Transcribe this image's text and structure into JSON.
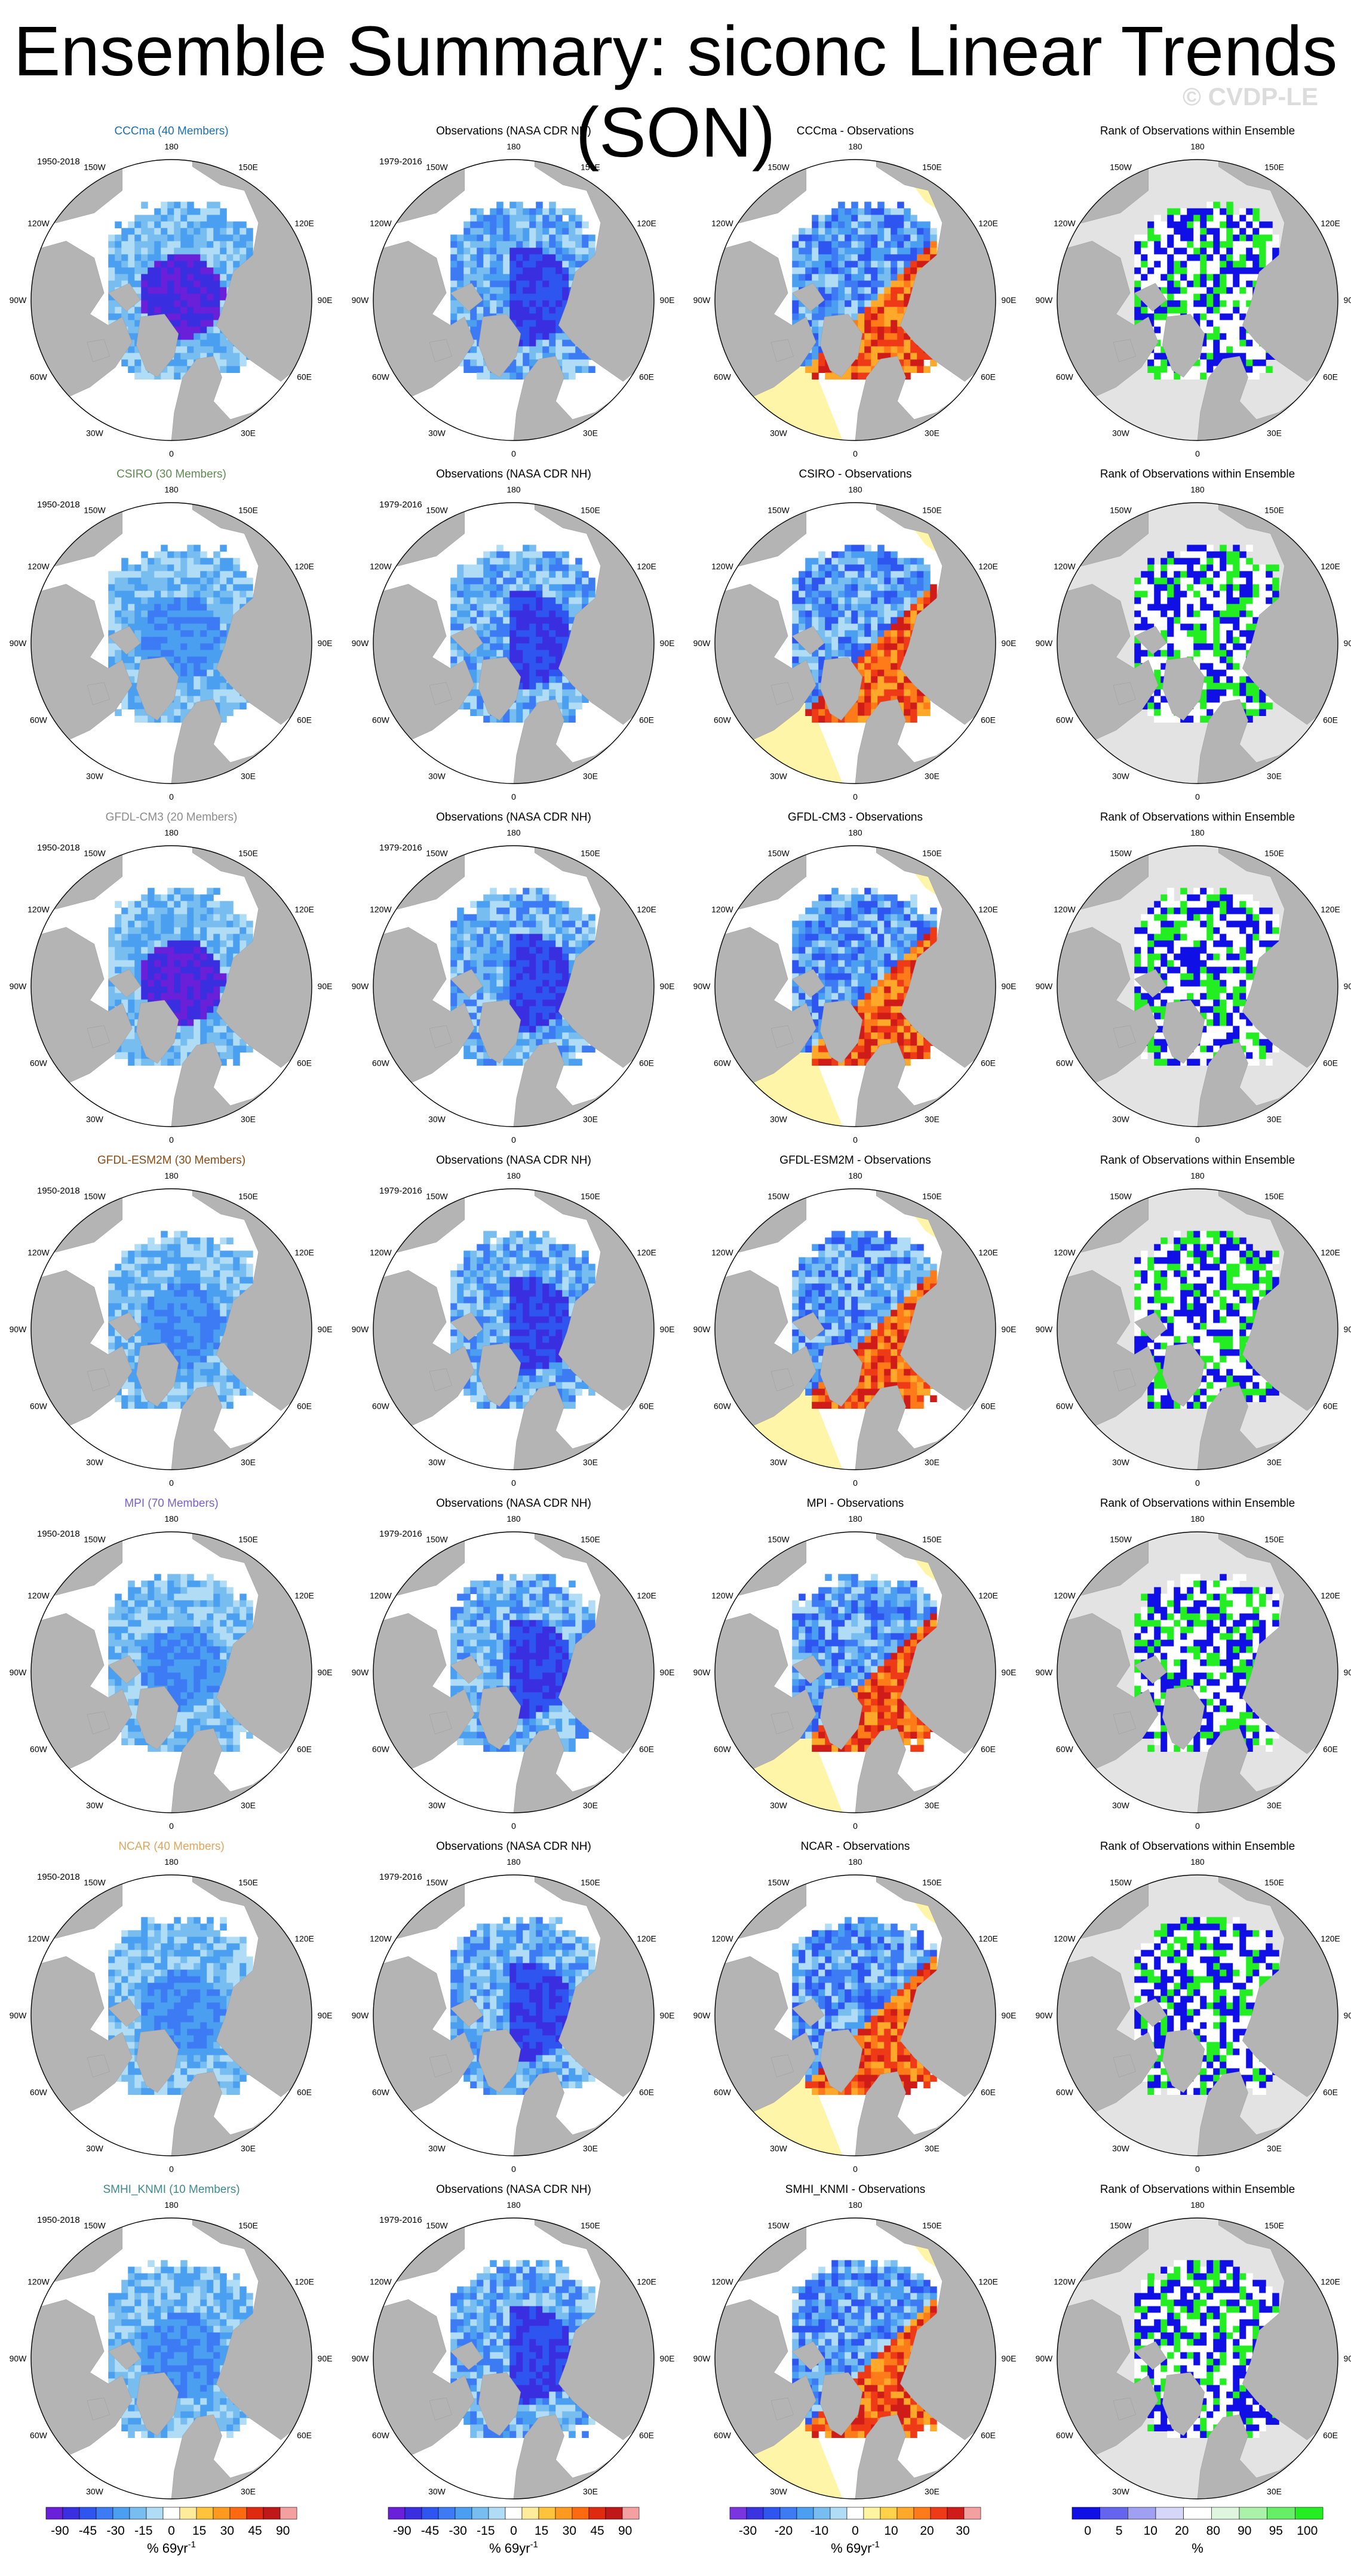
{
  "title": "Ensemble Summary: siconc Linear Trends (SON)",
  "watermark": "© CVDP-LE",
  "lon_labels": [
    "180",
    "150E",
    "120E",
    "90E",
    "60E",
    "30E",
    "0",
    "30W",
    "60W",
    "90W",
    "120W",
    "150W"
  ],
  "rows": [
    {
      "model": "CCCma",
      "title": "CCCma (40 Members)",
      "color": "#1c70ad",
      "period": "1950-2018",
      "diff_title": "CCCma - Observations"
    },
    {
      "model": "CSIRO",
      "title": "CSIRO (30 Members)",
      "color": "#5e8a50",
      "period": "1950-2018",
      "diff_title": "CSIRO - Observations"
    },
    {
      "model": "GFDL-CM3",
      "title": "GFDL-CM3 (20 Members)",
      "color": "#8c8c8c",
      "period": "1950-2018",
      "diff_title": "GFDL-CM3 - Observations"
    },
    {
      "model": "GFDL-ESM2M",
      "title": "GFDL-ESM2M (30 Members)",
      "color": "#8b4a14",
      "period": "1950-2018",
      "diff_title": "GFDL-ESM2M - Observations"
    },
    {
      "model": "MPI",
      "title": "MPI (70 Members)",
      "color": "#7a5fc6",
      "period": "1950-2018",
      "diff_title": "MPI - Observations"
    },
    {
      "model": "NCAR",
      "title": "NCAR (40 Members)",
      "color": "#e0a55c",
      "period": "1950-2018",
      "diff_title": "NCAR - Observations"
    },
    {
      "model": "SMHI_KNMI",
      "title": "SMHI_KNMI (10 Members)",
      "color": "#3e8a8a",
      "period": "1950-2018",
      "diff_title": "SMHI_KNMI - Observations"
    }
  ],
  "obs_title": "Observations (NASA CDR NH)",
  "obs_period": "1979-2016",
  "rank_title": "Rank of Observations within Ensemble",
  "colorbars": [
    {
      "kind": "trend",
      "labels": [
        "-90",
        "-45",
        "-30",
        "-15",
        "0",
        "15",
        "30",
        "45",
        "90"
      ],
      "unit": "% 69yr"
    },
    {
      "kind": "trend",
      "labels": [
        "-90",
        "-45",
        "-30",
        "-15",
        "0",
        "15",
        "30",
        "45",
        "90"
      ],
      "unit": "% 69yr"
    },
    {
      "kind": "diff",
      "labels": [
        "-30",
        "-20",
        "-10",
        "0",
        "10",
        "20",
        "30"
      ],
      "unit": "% 69yr"
    },
    {
      "kind": "rank",
      "labels": [
        "0",
        "5",
        "10",
        "20",
        "80",
        "90",
        "95",
        "100"
      ],
      "unit": "%"
    }
  ],
  "unit_exponent": "-1",
  "colors": {
    "land": "#b4b4b4",
    "rank_background": "#e3e3e3",
    "obs_positive": "#fff5a8",
    "rank_high": "#22ee22",
    "rank_low": "#1010e6",
    "trend_scale": [
      "#6a1fd8",
      "#3a2fe0",
      "#2f55f0",
      "#3d7bf5",
      "#4a9ff0",
      "#78bdf0",
      "#b0dcf5",
      "#ffffff",
      "#ffec9a",
      "#ffc43c",
      "#ff9a1e",
      "#ff6a10",
      "#e02a10",
      "#c01818",
      "#f4a0a0"
    ],
    "diff_scale": [
      "#7a35e0",
      "#3a33e0",
      "#2f55f0",
      "#3d7bf5",
      "#4a9ff0",
      "#78bdf0",
      "#b0dcf5",
      "#ffffff",
      "#fff4a0",
      "#ffd24a",
      "#ffa82a",
      "#ff7a18",
      "#ee3a16",
      "#d01c18",
      "#f4a0a0"
    ],
    "rank_scale": [
      "#1010e6",
      "#6464ee",
      "#a0a0f2",
      "#d6d6f8",
      "#ffffff",
      "#ddf6dd",
      "#aaf2aa",
      "#66ee66",
      "#22ee22"
    ]
  }
}
